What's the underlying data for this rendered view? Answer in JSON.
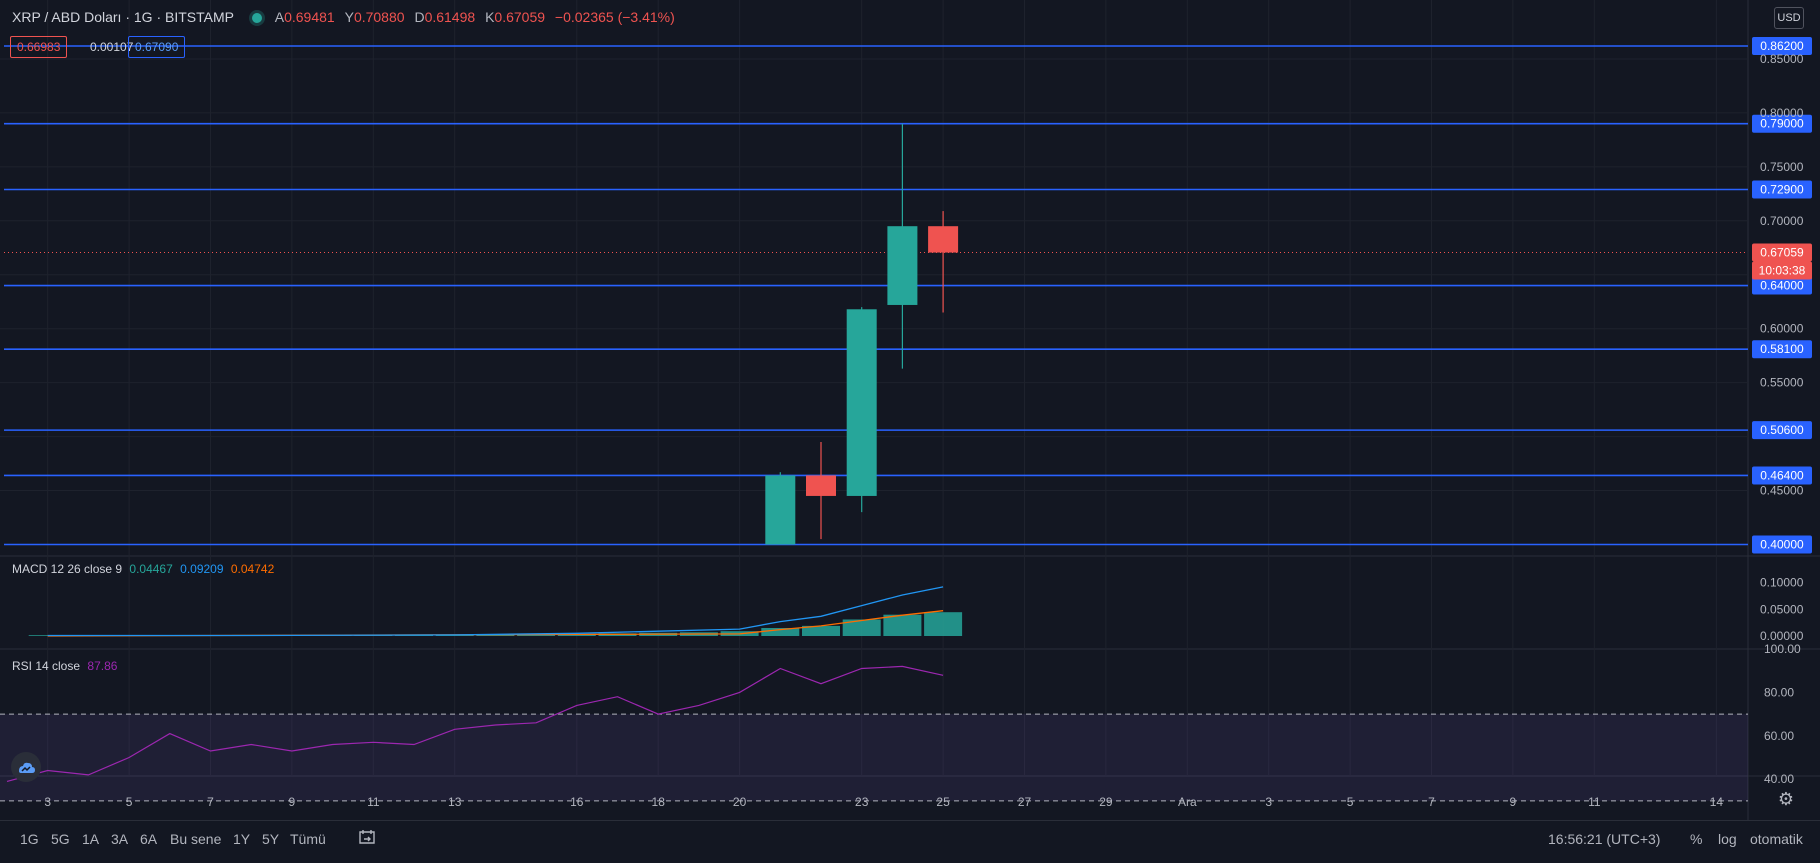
{
  "header": {
    "symbol": "XRP / ABD Doları · 1G · BITSTAMP",
    "open_label": "A",
    "open": "0.69481",
    "high_label": "Y",
    "high": "0.70880",
    "low_label": "D",
    "low": "0.61498",
    "close_label": "K",
    "close": "0.67059",
    "change": "−0.02365 (−3.41%)",
    "bid": "0.66983",
    "spread": "0.00107",
    "ask": "0.67090",
    "currency": "USD"
  },
  "chart_data": [
    {
      "type": "candlestick",
      "title": "XRP / ABD Doları · 1G · BITSTAMP",
      "ylim": [
        0.4,
        0.87
      ],
      "y_ticks": [
        "0.85000",
        "0.80000",
        "0.75000",
        "0.70000",
        "0.60000",
        "0.55000",
        "0.45000"
      ],
      "x_ticks": [
        {
          "label": "3",
          "day": 3
        },
        {
          "label": "5",
          "day": 5
        },
        {
          "label": "7",
          "day": 7
        },
        {
          "label": "9",
          "day": 9
        },
        {
          "label": "11",
          "day": 11
        },
        {
          "label": "13",
          "day": 13
        },
        {
          "label": "16",
          "day": 16
        },
        {
          "label": "18",
          "day": 18
        },
        {
          "label": "20",
          "day": 20
        },
        {
          "label": "23",
          "day": 23
        },
        {
          "label": "25",
          "day": 25
        },
        {
          "label": "27",
          "day": 27
        },
        {
          "label": "29",
          "day": 29
        },
        {
          "label": "Ara",
          "day": 31
        },
        {
          "label": "3",
          "day": 33
        },
        {
          "label": "5",
          "day": 35
        },
        {
          "label": "7",
          "day": 37
        },
        {
          "label": "9",
          "day": 39
        },
        {
          "label": "11",
          "day": 41
        },
        {
          "label": "14",
          "day": 44
        }
      ],
      "candles": [
        {
          "day": 21,
          "open": 0.4,
          "high": 0.467,
          "low": 0.4,
          "close": 0.464
        },
        {
          "day": 22,
          "open": 0.464,
          "high": 0.495,
          "low": 0.405,
          "close": 0.445
        },
        {
          "day": 23,
          "open": 0.445,
          "high": 0.62,
          "low": 0.43,
          "close": 0.618
        },
        {
          "day": 24,
          "open": 0.622,
          "high": 0.79,
          "low": 0.563,
          "close": 0.695
        },
        {
          "day": 25,
          "open": 0.695,
          "high": 0.709,
          "low": 0.615,
          "close": 0.67059
        }
      ],
      "horizontal_levels": [
        "0.86200",
        "0.79000",
        "0.72900",
        "0.64000",
        "0.58100",
        "0.50600",
        "0.46400",
        "0.40000"
      ],
      "last_price": "0.67059",
      "countdown": "10:03:38",
      "colors": {
        "up": "#26a69a",
        "down": "#ef5350",
        "level": "#2962ff",
        "label_bg": "#2962ff"
      }
    },
    {
      "type": "bar",
      "title": "MACD 12 26 close 9",
      "legend": [
        "0.04467",
        "0.09209",
        "0.04742"
      ],
      "ylim": [
        0,
        0.11
      ],
      "y_ticks": [
        "0.10000",
        "0.05000",
        "0.00000"
      ],
      "histogram": [
        {
          "day": 3,
          "value": 0.0015
        },
        {
          "day": 4,
          "value": 0.0015
        },
        {
          "day": 5,
          "value": 0.0015
        },
        {
          "day": 6,
          "value": 0.001
        },
        {
          "day": 7,
          "value": 0.001
        },
        {
          "day": 8,
          "value": 0.002
        },
        {
          "day": 9,
          "value": 0.002
        },
        {
          "day": 10,
          "value": 0.0015
        },
        {
          "day": 11,
          "value": 0.0015
        },
        {
          "day": 12,
          "value": 0.0015
        },
        {
          "day": 13,
          "value": 0.002
        },
        {
          "day": 14,
          "value": 0.003
        },
        {
          "day": 15,
          "value": 0.003
        },
        {
          "day": 16,
          "value": 0.004
        },
        {
          "day": 17,
          "value": 0.005
        },
        {
          "day": 18,
          "value": 0.006
        },
        {
          "day": 19,
          "value": 0.007
        },
        {
          "day": 20,
          "value": 0.009
        },
        {
          "day": 21,
          "value": 0.015
        },
        {
          "day": 22,
          "value": 0.019
        },
        {
          "day": 23,
          "value": 0.031
        },
        {
          "day": 24,
          "value": 0.04
        },
        {
          "day": 25,
          "value": 0.04467
        }
      ],
      "macd_line": [
        {
          "day": 3,
          "value": 0.001
        },
        {
          "day": 8,
          "value": 0.001
        },
        {
          "day": 13,
          "value": 0.002
        },
        {
          "day": 16,
          "value": 0.005
        },
        {
          "day": 18,
          "value": 0.009
        },
        {
          "day": 20,
          "value": 0.013
        },
        {
          "day": 21,
          "value": 0.027
        },
        {
          "day": 22,
          "value": 0.037
        },
        {
          "day": 23,
          "value": 0.057
        },
        {
          "day": 24,
          "value": 0.077
        },
        {
          "day": 25,
          "value": 0.09209
        }
      ],
      "signal_line": [
        {
          "day": 3,
          "value": 0.0
        },
        {
          "day": 20,
          "value": 0.004
        },
        {
          "day": 21,
          "value": 0.012
        },
        {
          "day": 22,
          "value": 0.019
        },
        {
          "day": 23,
          "value": 0.029
        },
        {
          "day": 24,
          "value": 0.039
        },
        {
          "day": 25,
          "value": 0.04742
        }
      ],
      "colors": {
        "histogram": "#26a69a",
        "macd": "#2196f3",
        "signal": "#ff6d00"
      }
    },
    {
      "type": "line",
      "title": "RSI 14 close",
      "value": "87.86",
      "ylim": [
        30,
        100
      ],
      "y_ticks": [
        "100.00",
        "80.00",
        "60.00",
        "40.00"
      ],
      "bands": [
        30,
        70
      ],
      "series": [
        {
          "day": 2,
          "value": 39
        },
        {
          "day": 3,
          "value": 44
        },
        {
          "day": 4,
          "value": 42
        },
        {
          "day": 5,
          "value": 50
        },
        {
          "day": 6,
          "value": 61
        },
        {
          "day": 7,
          "value": 53
        },
        {
          "day": 8,
          "value": 56
        },
        {
          "day": 9,
          "value": 53
        },
        {
          "day": 10,
          "value": 56
        },
        {
          "day": 11,
          "value": 57
        },
        {
          "day": 12,
          "value": 56
        },
        {
          "day": 13,
          "value": 63
        },
        {
          "day": 14,
          "value": 65
        },
        {
          "day": 15,
          "value": 66
        },
        {
          "day": 16,
          "value": 74
        },
        {
          "day": 17,
          "value": 78
        },
        {
          "day": 18,
          "value": 70
        },
        {
          "day": 19,
          "value": 74
        },
        {
          "day": 20,
          "value": 80
        },
        {
          "day": 21,
          "value": 91
        },
        {
          "day": 22,
          "value": 84
        },
        {
          "day": 23,
          "value": 91
        },
        {
          "day": 24,
          "value": 92
        },
        {
          "day": 25,
          "value": 87.86
        }
      ],
      "colors": {
        "line": "#9c27b0",
        "band": "rgba(126,87,194,0.12)"
      }
    }
  ],
  "toolbar": {
    "ranges": [
      "1G",
      "5G",
      "1A",
      "3A",
      "6A",
      "Bu sene",
      "1Y",
      "5Y",
      "Tümü"
    ],
    "time": "16:56:21 (UTC+3)",
    "percent": "%",
    "log": "log",
    "auto": "otomatik"
  }
}
